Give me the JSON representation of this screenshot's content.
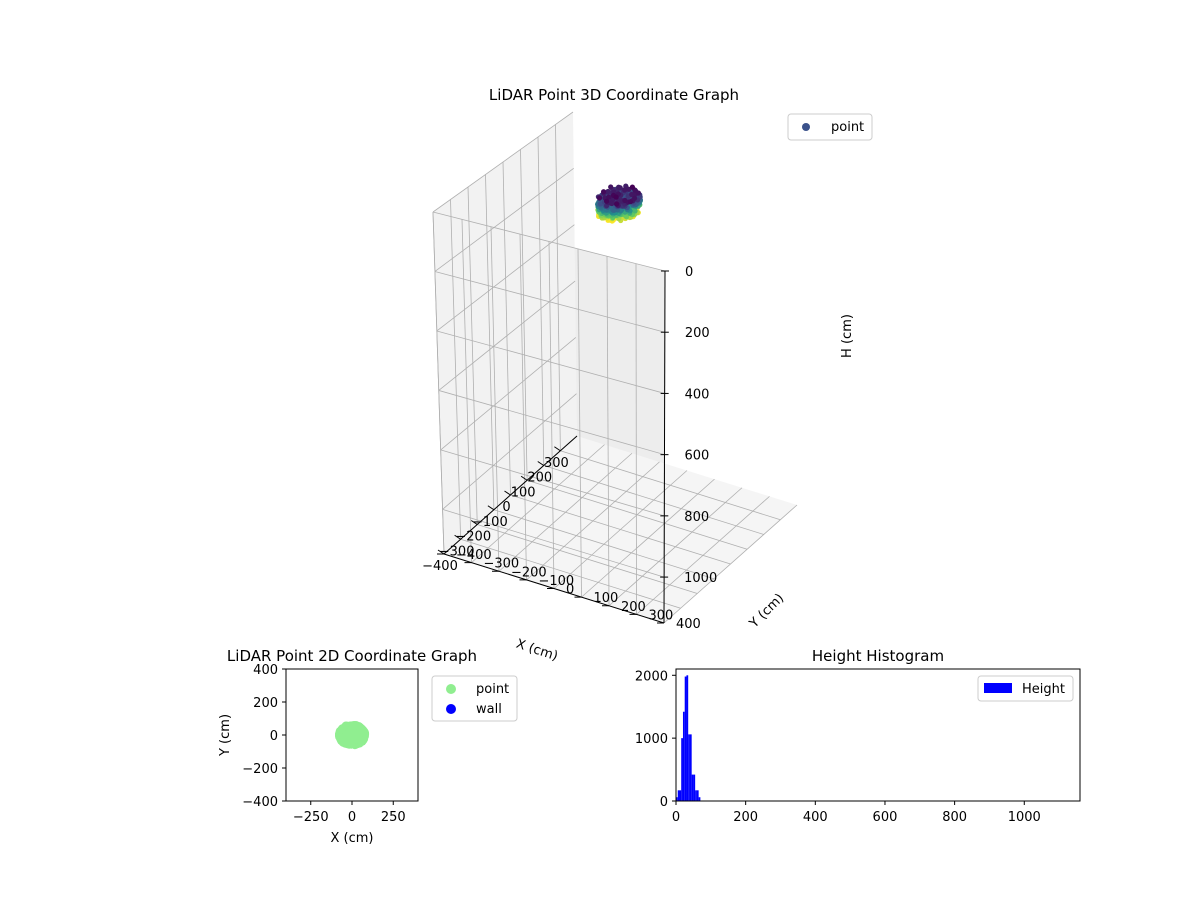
{
  "chart_data": [
    {
      "type": "scatter",
      "projection": "3d",
      "title": "LiDAR Point 3D Coordinate Graph",
      "xlabel": "X (cm)",
      "ylabel": "Y (cm)",
      "zlabel": "H (cm)",
      "xlim": [
        -400,
        400
      ],
      "ylim": [
        -400,
        400
      ],
      "zlim": [
        1150,
        0
      ],
      "x_ticks": [
        -400,
        -300,
        -200,
        -100,
        0,
        100,
        200,
        300
      ],
      "y_ticks": [
        -400,
        -300,
        -200,
        -100,
        0,
        100,
        200,
        300,
        400
      ],
      "z_ticks": [
        0,
        200,
        400,
        600,
        800,
        1000
      ],
      "grid": true,
      "legend_position": "top-right",
      "colormap": "viridis",
      "series": [
        {
          "name": "point",
          "color": "#3b528b",
          "cluster": {
            "center_x": 0,
            "center_y": 0,
            "radius_x": 75,
            "radius_y": 60,
            "h_min": 10,
            "h_max": 70
          }
        }
      ]
    },
    {
      "type": "scatter",
      "title": "LiDAR Point 2D Coordinate Graph",
      "xlabel": "X (cm)",
      "ylabel": "Y (cm)",
      "xlim": [
        -400,
        400
      ],
      "ylim": [
        -400,
        400
      ],
      "x_ticks": [
        -250,
        0,
        250
      ],
      "y_ticks": [
        -400,
        -200,
        0,
        200,
        400
      ],
      "legend_position": "outside-right",
      "series": [
        {
          "name": "point",
          "color": "#90ee90",
          "cluster": {
            "center_x": 0,
            "center_y": 0,
            "radius_x": 80,
            "radius_y": 65
          }
        },
        {
          "name": "wall",
          "color": "#0000ff",
          "points": []
        }
      ]
    },
    {
      "type": "bar",
      "subtype": "histogram",
      "title": "Height Histogram",
      "xlim": [
        0,
        1160
      ],
      "ylim": [
        0,
        2100
      ],
      "x_ticks": [
        0,
        200,
        400,
        600,
        800,
        1000
      ],
      "y_ticks": [
        0,
        1000,
        2000
      ],
      "legend_position": "top-right",
      "series": [
        {
          "name": "Height",
          "color": "#0000ff",
          "bins": [
            {
              "x0": 0,
              "x1": 5,
              "count": 60
            },
            {
              "x0": 5,
              "x1": 10,
              "count": 170
            },
            {
              "x0": 10,
              "x1": 15,
              "count": 170
            },
            {
              "x0": 15,
              "x1": 20,
              "count": 1000
            },
            {
              "x0": 20,
              "x1": 25,
              "count": 1420
            },
            {
              "x0": 25,
              "x1": 30,
              "count": 1980
            },
            {
              "x0": 30,
              "x1": 35,
              "count": 2000
            },
            {
              "x0": 35,
              "x1": 40,
              "count": 1060
            },
            {
              "x0": 40,
              "x1": 45,
              "count": 1060
            },
            {
              "x0": 45,
              "x1": 50,
              "count": 420
            },
            {
              "x0": 50,
              "x1": 55,
              "count": 420
            },
            {
              "x0": 55,
              "x1": 60,
              "count": 170
            },
            {
              "x0": 60,
              "x1": 65,
              "count": 170
            },
            {
              "x0": 65,
              "x1": 70,
              "count": 60
            }
          ]
        }
      ]
    }
  ]
}
